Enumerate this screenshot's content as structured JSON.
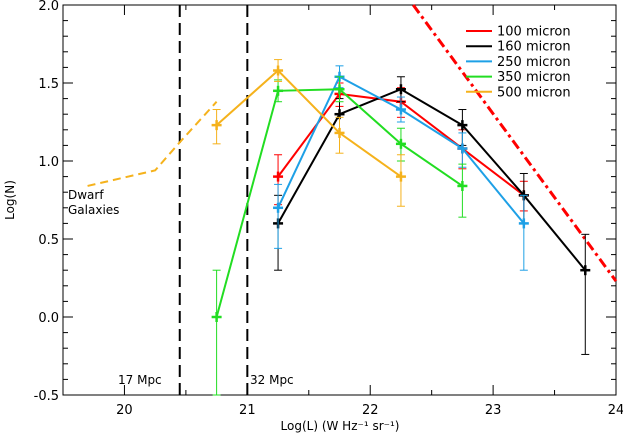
{
  "chart_data": {
    "type": "line",
    "xlabel": "Log(L)  (W Hz⁻¹ sr⁻¹)",
    "ylabel": "Log(N)",
    "xlim": [
      19.5,
      24.0
    ],
    "ylim": [
      -0.5,
      2.0
    ],
    "xticks": [
      "20",
      "21",
      "22",
      "23",
      "24"
    ],
    "yticks": [
      "-0.5",
      "0.0",
      "0.5",
      "1.0",
      "1.5",
      "2.0"
    ],
    "grid": false,
    "legend_position": "top-right",
    "series": [
      {
        "name": "100 micron",
        "color": "#ff0000",
        "points": [
          {
            "x": 21.25,
            "y": 0.9,
            "ylo": 0.72,
            "yhi": 1.04
          },
          {
            "x": 21.75,
            "y": 1.43,
            "ylo": 1.35,
            "yhi": 1.5
          },
          {
            "x": 22.25,
            "y": 1.38,
            "ylo": 1.28,
            "yhi": 1.47
          },
          {
            "x": 22.75,
            "y": 1.08,
            "ylo": 0.95,
            "yhi": 1.2
          },
          {
            "x": 23.25,
            "y": 0.78,
            "ylo": 0.68,
            "yhi": 0.87
          }
        ]
      },
      {
        "name": "160 micron",
        "color": "#000000",
        "points": [
          {
            "x": 21.25,
            "y": 0.6,
            "ylo": 0.3,
            "yhi": 0.78
          },
          {
            "x": 21.75,
            "y": 1.3,
            "ylo": 1.18,
            "yhi": 1.4
          },
          {
            "x": 22.25,
            "y": 1.46,
            "ylo": 1.38,
            "yhi": 1.54
          },
          {
            "x": 22.75,
            "y": 1.23,
            "ylo": 1.1,
            "yhi": 1.33
          },
          {
            "x": 23.25,
            "y": 0.78,
            "ylo": 0.6,
            "yhi": 0.92
          },
          {
            "x": 23.75,
            "y": 0.3,
            "ylo": -0.24,
            "yhi": 0.53
          }
        ]
      },
      {
        "name": "250 micron",
        "color": "#1ea0e6",
        "points": [
          {
            "x": 21.25,
            "y": 0.7,
            "ylo": 0.44,
            "yhi": 0.85
          },
          {
            "x": 21.75,
            "y": 1.54,
            "ylo": 1.47,
            "yhi": 1.61
          },
          {
            "x": 22.25,
            "y": 1.33,
            "ylo": 1.25,
            "yhi": 1.41
          },
          {
            "x": 22.75,
            "y": 1.08,
            "ylo": 0.96,
            "yhi": 1.18
          },
          {
            "x": 23.25,
            "y": 0.6,
            "ylo": 0.3,
            "yhi": 0.78
          }
        ]
      },
      {
        "name": "350 micron",
        "color": "#22dd22",
        "points": [
          {
            "x": 20.75,
            "y": 0.0,
            "ylo": -0.5,
            "yhi": 0.3
          },
          {
            "x": 21.25,
            "y": 1.45,
            "ylo": 1.38,
            "yhi": 1.52
          },
          {
            "x": 21.75,
            "y": 1.46,
            "ylo": 1.38,
            "yhi": 1.54
          },
          {
            "x": 22.25,
            "y": 1.11,
            "ylo": 1.0,
            "yhi": 1.21
          },
          {
            "x": 22.75,
            "y": 0.84,
            "ylo": 0.64,
            "yhi": 0.98
          }
        ]
      },
      {
        "name": "500 micron",
        "color": "#f5b21c",
        "points": [
          {
            "x": 20.75,
            "y": 1.23,
            "ylo": 1.11,
            "yhi": 1.33
          },
          {
            "x": 21.25,
            "y": 1.58,
            "ylo": 1.51,
            "yhi": 1.65
          },
          {
            "x": 21.75,
            "y": 1.18,
            "ylo": 1.05,
            "yhi": 1.28
          },
          {
            "x": 22.25,
            "y": 0.9,
            "ylo": 0.71,
            "yhi": 1.04
          }
        ]
      }
    ],
    "dwarf_galaxies": {
      "label_line1": "Dwarf",
      "label_line2": "Galaxies",
      "color": "#f5b21c",
      "style": "dashed",
      "points": [
        {
          "x": 19.7,
          "y": 0.84
        },
        {
          "x": 20.25,
          "y": 0.94
        },
        {
          "x": 20.45,
          "y": 1.12
        },
        {
          "x": 20.75,
          "y": 1.38
        }
      ]
    },
    "distance_lines": [
      {
        "x": 20.45,
        "label": "17 Mpc",
        "color": "#000000",
        "style": "dashed"
      },
      {
        "x": 21.0,
        "label": "32 Mpc",
        "color": "#000000",
        "style": "dashed"
      }
    ],
    "diagonal_line": {
      "color": "#ff0000",
      "style": "dash-dot",
      "points": [
        {
          "x": 22.35,
          "y": 2.0
        },
        {
          "x": 24.0,
          "y": 0.23
        }
      ]
    }
  }
}
